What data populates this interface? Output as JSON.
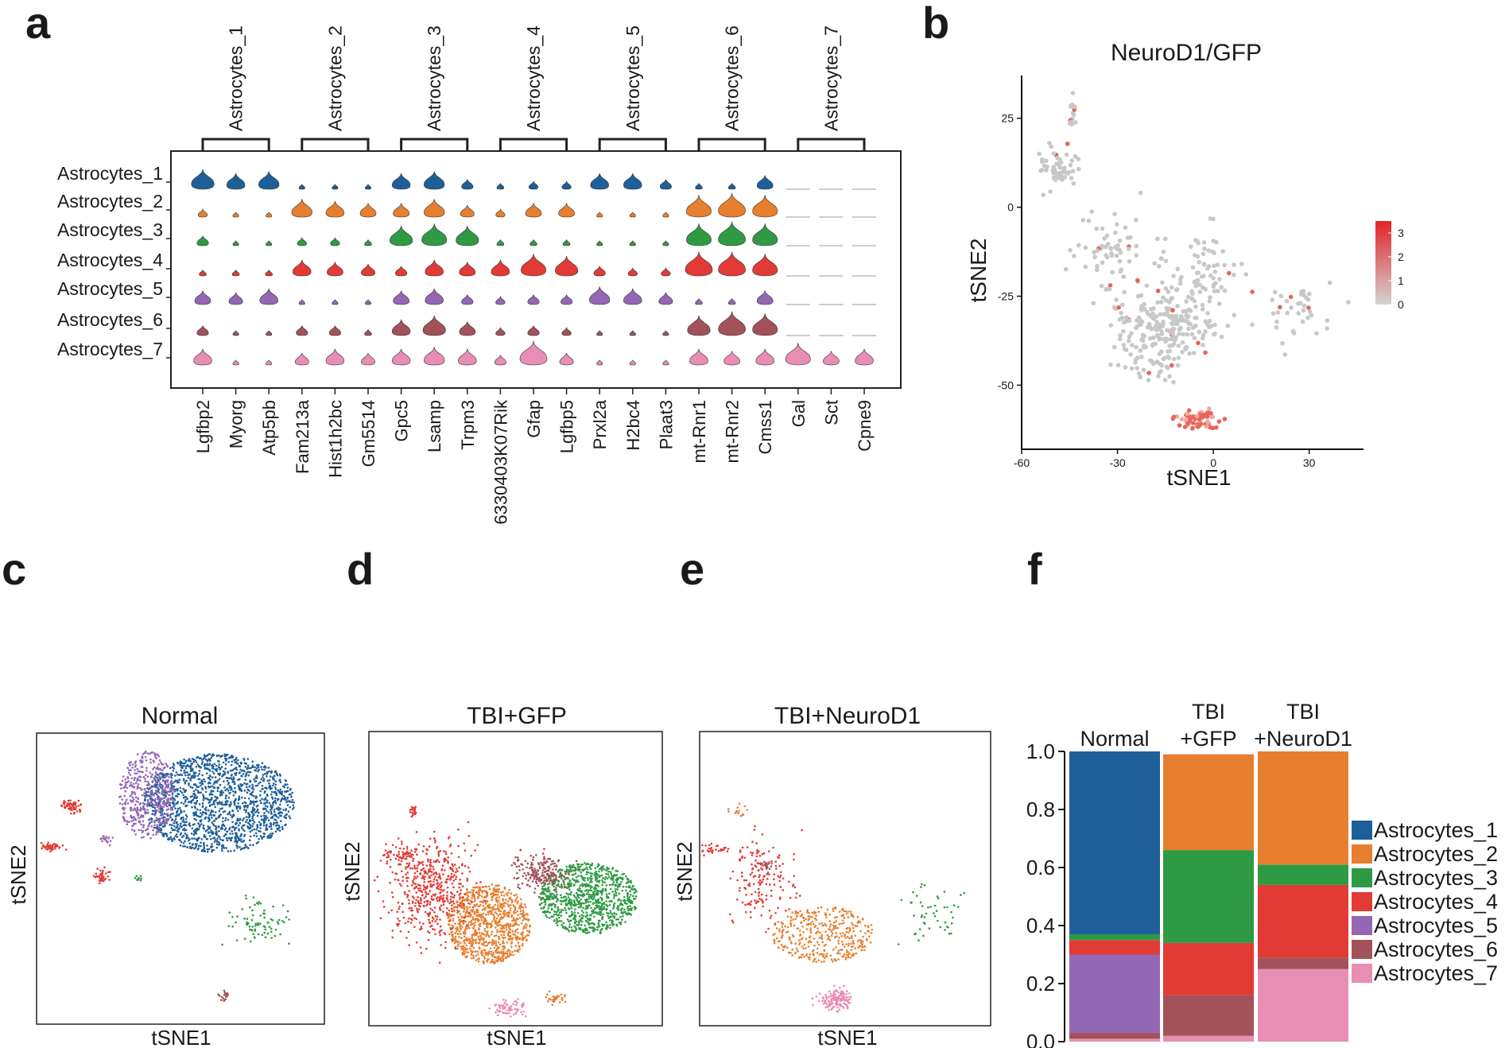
{
  "panels": {
    "a": "a",
    "b": "b",
    "c": "c",
    "d": "d",
    "e": "e",
    "f": "f"
  },
  "colors": {
    "Astrocytes_1": "#1f5f99",
    "Astrocytes_2": "#e87f2e",
    "Astrocytes_3": "#2e9a44",
    "Astrocytes_4": "#e23b35",
    "Astrocytes_5": "#9467b5",
    "Astrocytes_6": "#a25258",
    "Astrocytes_7": "#e88db4"
  },
  "chart_data": [
    {
      "panel": "a",
      "type": "violin",
      "clusters": [
        "Astrocytes_1",
        "Astrocytes_2",
        "Astrocytes_3",
        "Astrocytes_4",
        "Astrocytes_5",
        "Astrocytes_6",
        "Astrocytes_7"
      ],
      "gene_groups": [
        "Astrocytes_1",
        "Astrocytes_2",
        "Astrocytes_3",
        "Astrocytes_4",
        "Astrocytes_5",
        "Astrocytes_6",
        "Astrocytes_7"
      ],
      "genes": [
        "Lgfbp2",
        "Myorg",
        "Atp5pb",
        "Fam213a",
        "Hist1h2bc",
        "Gm5514",
        "Gpc5",
        "Lsamp",
        "Trpm3",
        "6330403K07Rik",
        "Gfap",
        "Lgfbp5",
        "Prxl2a",
        "H2bc4",
        "Plaat3",
        "mt-Rnr1",
        "mt-Rnr2",
        "Cmss1",
        "Gal",
        "Sct",
        "Cpne9"
      ],
      "expression": [
        [
          0.8,
          0.6,
          0.7,
          0.05,
          0.05,
          0.05,
          0.6,
          0.7,
          0.3,
          0.1,
          0.2,
          0.2,
          0.6,
          0.6,
          0.3,
          0.1,
          0.1,
          0.5,
          0,
          0,
          0
        ],
        [
          0.2,
          0.05,
          0.05,
          0.7,
          0.6,
          0.5,
          0.5,
          0.7,
          0.4,
          0.2,
          0.5,
          0.5,
          0.05,
          0.05,
          0.05,
          0.9,
          1.0,
          0.9,
          0,
          0,
          0
        ],
        [
          0.3,
          0.05,
          0.05,
          0.2,
          0.2,
          0.1,
          0.8,
          0.9,
          0.8,
          0.1,
          0.1,
          0.1,
          0.05,
          0.05,
          0.05,
          0.9,
          1.0,
          0.9,
          0,
          0,
          0
        ],
        [
          0.1,
          0.1,
          0.1,
          0.6,
          0.5,
          0.4,
          0.3,
          0.6,
          0.5,
          0.6,
          0.9,
          0.8,
          0.3,
          0.2,
          0.2,
          1.0,
          1.0,
          0.9,
          0,
          0,
          0
        ],
        [
          0.5,
          0.4,
          0.6,
          0.05,
          0.05,
          0.05,
          0.5,
          0.6,
          0.3,
          0.2,
          0.3,
          0.3,
          0.7,
          0.6,
          0.4,
          0.1,
          0.1,
          0.5,
          0,
          0,
          0
        ],
        [
          0.3,
          0.05,
          0.05,
          0.3,
          0.3,
          0.1,
          0.6,
          0.8,
          0.5,
          0.2,
          0.3,
          0.2,
          0.05,
          0.05,
          0.05,
          0.8,
          1.0,
          0.9,
          0,
          0,
          0
        ],
        [
          0.6,
          0.05,
          0.05,
          0.4,
          0.6,
          0.4,
          0.6,
          0.7,
          0.6,
          0.3,
          1.0,
          0.4,
          0.05,
          0.05,
          0.05,
          0.6,
          0.5,
          0.6,
          0.9,
          0.5,
          0.6
        ]
      ]
    },
    {
      "panel": "b",
      "type": "scatter",
      "title": "NeuroD1/GFP",
      "xlabel": "tSNE1",
      "ylabel": "tSNE2",
      "xlim": [
        -60,
        47
      ],
      "ylim": [
        -68,
        37
      ],
      "xticks": [
        -60,
        -30,
        0,
        30
      ],
      "yticks": [
        25,
        0,
        -25,
        -50
      ],
      "colorbar_ticks": [
        3,
        2,
        1,
        0
      ],
      "colorbar_range": [
        0,
        3.5
      ]
    },
    {
      "panel": "c",
      "type": "scatter",
      "title": "Normal",
      "xlabel": "tSNE1",
      "ylabel": "tSNE2",
      "cluster_composition": {
        "Astrocytes_1": 0.63,
        "Astrocytes_3": 0.02,
        "Astrocytes_4": 0.05,
        "Astrocytes_5": 0.27,
        "Astrocytes_6": 0.02
      }
    },
    {
      "panel": "d",
      "type": "scatter",
      "title": "TBI+GFP",
      "xlabel": "tSNE1",
      "ylabel": "tSNE2",
      "cluster_composition": {
        "Astrocytes_2": 0.33,
        "Astrocytes_3": 0.32,
        "Astrocytes_4": 0.18,
        "Astrocytes_6": 0.14,
        "Astrocytes_7": 0.02
      }
    },
    {
      "panel": "e",
      "type": "scatter",
      "title": "TBI+NeuroD1",
      "xlabel": "tSNE1",
      "ylabel": "tSNE2",
      "cluster_composition": {
        "Astrocytes_2": 0.39,
        "Astrocytes_3": 0.07,
        "Astrocytes_4": 0.25,
        "Astrocytes_6": 0.04,
        "Astrocytes_7": 0.25
      }
    },
    {
      "panel": "f",
      "type": "bar",
      "stacked": true,
      "categories": [
        "Normal",
        "TBI\n+GFP",
        "TBI\n+NeuroD1"
      ],
      "category_lines": [
        [
          "Normal"
        ],
        [
          "TBI",
          "+GFP"
        ],
        [
          "TBI",
          "+NeuroD1"
        ]
      ],
      "yticks": [
        "1.0",
        "0.8",
        "0.6",
        "0.4",
        "0.2",
        "0.0"
      ],
      "ylim": [
        0,
        1
      ],
      "series": [
        {
          "name": "Astrocytes_1",
          "values": [
            0.63,
            0.0,
            0.0
          ]
        },
        {
          "name": "Astrocytes_2",
          "values": [
            0.0,
            0.33,
            0.39
          ]
        },
        {
          "name": "Astrocytes_3",
          "values": [
            0.02,
            0.32,
            0.07
          ]
        },
        {
          "name": "Astrocytes_4",
          "values": [
            0.05,
            0.18,
            0.25
          ]
        },
        {
          "name": "Astrocytes_5",
          "values": [
            0.27,
            0.0,
            0.0
          ]
        },
        {
          "name": "Astrocytes_6",
          "values": [
            0.02,
            0.14,
            0.04
          ]
        },
        {
          "name": "Astrocytes_7",
          "values": [
            0.01,
            0.02,
            0.25
          ]
        }
      ],
      "legend": [
        "Astrocytes_1",
        "Astrocytes_2",
        "Astrocytes_3",
        "Astrocytes_4",
        "Astrocytes_5",
        "Astrocytes_6",
        "Astrocytes_7"
      ]
    }
  ]
}
